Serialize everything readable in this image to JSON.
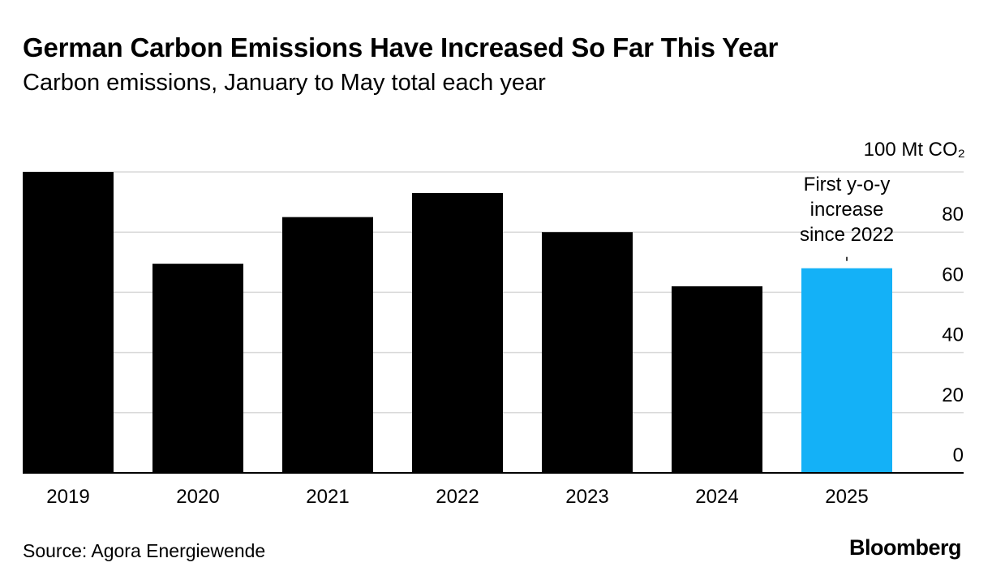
{
  "header": {
    "title": "German Carbon Emissions Have Increased So Far This Year",
    "subtitle": "Carbon emissions, January to May total each year"
  },
  "footer": {
    "source": "Source: Agora Energiewende",
    "brand": "Bloomberg"
  },
  "chart_data": {
    "type": "bar",
    "categories": [
      "2019",
      "2020",
      "2021",
      "2022",
      "2023",
      "2024",
      "2025"
    ],
    "values": [
      100,
      69.5,
      85,
      93,
      80,
      62,
      68
    ],
    "ylim": [
      0,
      100
    ],
    "yticks": [
      0,
      20,
      40,
      60,
      80,
      100
    ],
    "ytick_labels": [
      "0",
      "20",
      "40",
      "60",
      "80",
      "100 Mt CO₂"
    ],
    "y_axis_position": "right",
    "grid": true,
    "bar_colors": [
      "#000000",
      "#000000",
      "#000000",
      "#000000",
      "#000000",
      "#000000",
      "#14b1f7"
    ],
    "annotation": {
      "category": "2025",
      "lines": [
        "First y-o-y",
        "increase",
        "since 2022"
      ]
    }
  }
}
